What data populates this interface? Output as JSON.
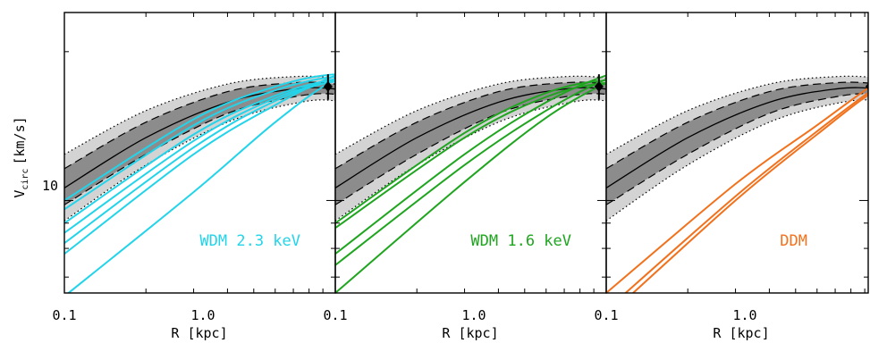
{
  "chart_data": {
    "type": "line",
    "ylabel": "V",
    "ylabel_sub": "circ",
    "ylabel_unit": "[km/s]",
    "y_scale": "log",
    "x_scale": "log",
    "xlim": [
      0.1,
      3.0
    ],
    "ylim": [
      6.5,
      24.0
    ],
    "yticks": [
      10
    ],
    "ytick_labels": [
      "10"
    ],
    "observed_point": {
      "R": 0.94,
      "V": 17.0,
      "err": 0.5
    },
    "bands": {
      "outer_band_dotted": {
        "R": [
          0.1,
          0.2,
          0.4,
          0.7,
          1.0,
          1.5,
          2.0,
          3.0
        ],
        "lower": [
          9.1,
          11.8,
          14.4,
          15.7,
          15.9,
          14.8,
          13.2,
          10.4
        ],
        "upper": [
          12.4,
          15.2,
          17.2,
          17.8,
          17.7,
          17.1,
          16.3,
          14.2
        ]
      },
      "inner_band_dashed": {
        "R": [
          0.1,
          0.2,
          0.4,
          0.7,
          1.0,
          1.5,
          2.0,
          3.0
        ],
        "lower": [
          9.8,
          12.4,
          15.0,
          16.2,
          16.4,
          15.6,
          14.2,
          11.5
        ],
        "upper": [
          11.6,
          14.4,
          16.6,
          17.3,
          17.2,
          16.5,
          15.4,
          13.1
        ]
      },
      "median": {
        "R": [
          0.1,
          0.2,
          0.4,
          0.7,
          1.0,
          1.5,
          2.0,
          3.0
        ],
        "V": [
          10.6,
          13.4,
          15.8,
          16.8,
          16.8,
          16.0,
          14.8,
          12.2
        ]
      }
    },
    "panels": [
      {
        "label": "WDM 2.3 keV",
        "xlabel": "R [kpc]",
        "xtick_labels": [
          "0.1",
          "1.0"
        ],
        "color": "#22d4ea",
        "series": [
          {
            "R": [
              0.1,
              0.3,
              0.6,
              1.0,
              1.5,
              2.0,
              3.0
            ],
            "V": [
              6.4,
              10.4,
              14.4,
              17.6,
              19.0,
              19.6,
              19.9
            ]
          },
          {
            "R": [
              0.1,
              0.3,
              0.6,
              1.0,
              1.5,
              2.0,
              3.0
            ],
            "V": [
              7.8,
              12.4,
              15.6,
              17.9,
              19.2,
              19.6,
              19.7
            ]
          },
          {
            "R": [
              0.1,
              0.3,
              0.6,
              1.0,
              1.5,
              2.0,
              3.0
            ],
            "V": [
              8.2,
              12.8,
              15.9,
              17.5,
              18.2,
              18.4,
              18.1
            ]
          },
          {
            "R": [
              0.1,
              0.3,
              0.6,
              1.0,
              1.5,
              2.0,
              3.0
            ],
            "V": [
              9.0,
              13.6,
              16.3,
              17.6,
              17.8,
              17.5,
              16.4
            ]
          },
          {
            "R": [
              0.1,
              0.3,
              0.6,
              1.0,
              1.5,
              2.0,
              3.0
            ],
            "V": [
              9.6,
              14.2,
              16.7,
              17.8,
              17.7,
              17.0,
              15.4
            ]
          },
          {
            "R": [
              0.1,
              0.3,
              0.6,
              1.0,
              1.5,
              2.0,
              3.0
            ],
            "V": [
              8.6,
              13.2,
              16.1,
              17.4,
              17.2,
              16.4,
              14.2
            ]
          },
          {
            "R": [
              0.1,
              0.3,
              0.6,
              1.0,
              1.5,
              2.0,
              3.0
            ],
            "V": [
              10.0,
              14.6,
              17.0,
              18.0,
              17.5,
              16.3,
              13.7
            ]
          }
        ]
      },
      {
        "label": "WDM 1.6 keV",
        "xlabel": "R [kpc]",
        "xtick_labels": [
          "0.1",
          "1.0"
        ],
        "color": "#1fa51f",
        "series": [
          {
            "R": [
              0.1,
              0.3,
              0.6,
              1.0,
              1.5,
              2.0,
              3.0
            ],
            "V": [
              6.5,
              10.9,
              14.7,
              17.3,
              19.0,
              20.1,
              21.2
            ]
          },
          {
            "R": [
              0.1,
              0.3,
              0.6,
              1.0,
              1.5,
              2.0,
              3.0
            ],
            "V": [
              7.4,
              11.8,
              15.2,
              17.6,
              19.2,
              20.0,
              20.5
            ]
          },
          {
            "R": [
              0.1,
              0.3,
              0.6,
              1.0,
              1.5,
              2.0,
              3.0
            ],
            "V": [
              7.8,
              12.4,
              15.8,
              17.9,
              18.9,
              19.0,
              19.0
            ]
          },
          {
            "R": [
              0.1,
              0.3,
              0.6,
              1.0,
              1.5,
              2.0,
              3.0
            ],
            "V": [
              8.8,
              13.4,
              16.2,
              17.3,
              17.1,
              16.4,
              14.6
            ]
          },
          {
            "R": [
              0.1,
              0.3,
              0.6,
              1.0,
              1.5,
              2.0,
              3.0
            ],
            "V": [
              9.0,
              13.7,
              16.5,
              17.5,
              17.2,
              16.3,
              14.4
            ]
          }
        ]
      },
      {
        "label": "DDM",
        "xlabel": "R [kpc]",
        "xtick_labels": [
          "0.1",
          "1.0"
        ],
        "color": "#f2711c",
        "series": [
          {
            "R": [
              0.1,
              0.3,
              0.6,
              1.0,
              1.5,
              2.0,
              3.0
            ],
            "V": [
              6.5,
              10.8,
              14.2,
              17.4,
              20.2,
              22.4,
              23.6
            ]
          },
          {
            "R": [
              0.1,
              0.3,
              0.6,
              1.0,
              1.5,
              2.0,
              3.0
            ],
            "V": [
              6.0,
              10.2,
              13.8,
              17.0,
              19.3,
              20.6,
              21.1
            ]
          },
          {
            "R": [
              0.1,
              0.3,
              0.6,
              1.0,
              1.5,
              2.0,
              3.0
            ],
            "V": [
              5.8,
              10.0,
              13.6,
              16.8,
              18.6,
              19.1,
              18.7
            ]
          }
        ]
      }
    ]
  }
}
